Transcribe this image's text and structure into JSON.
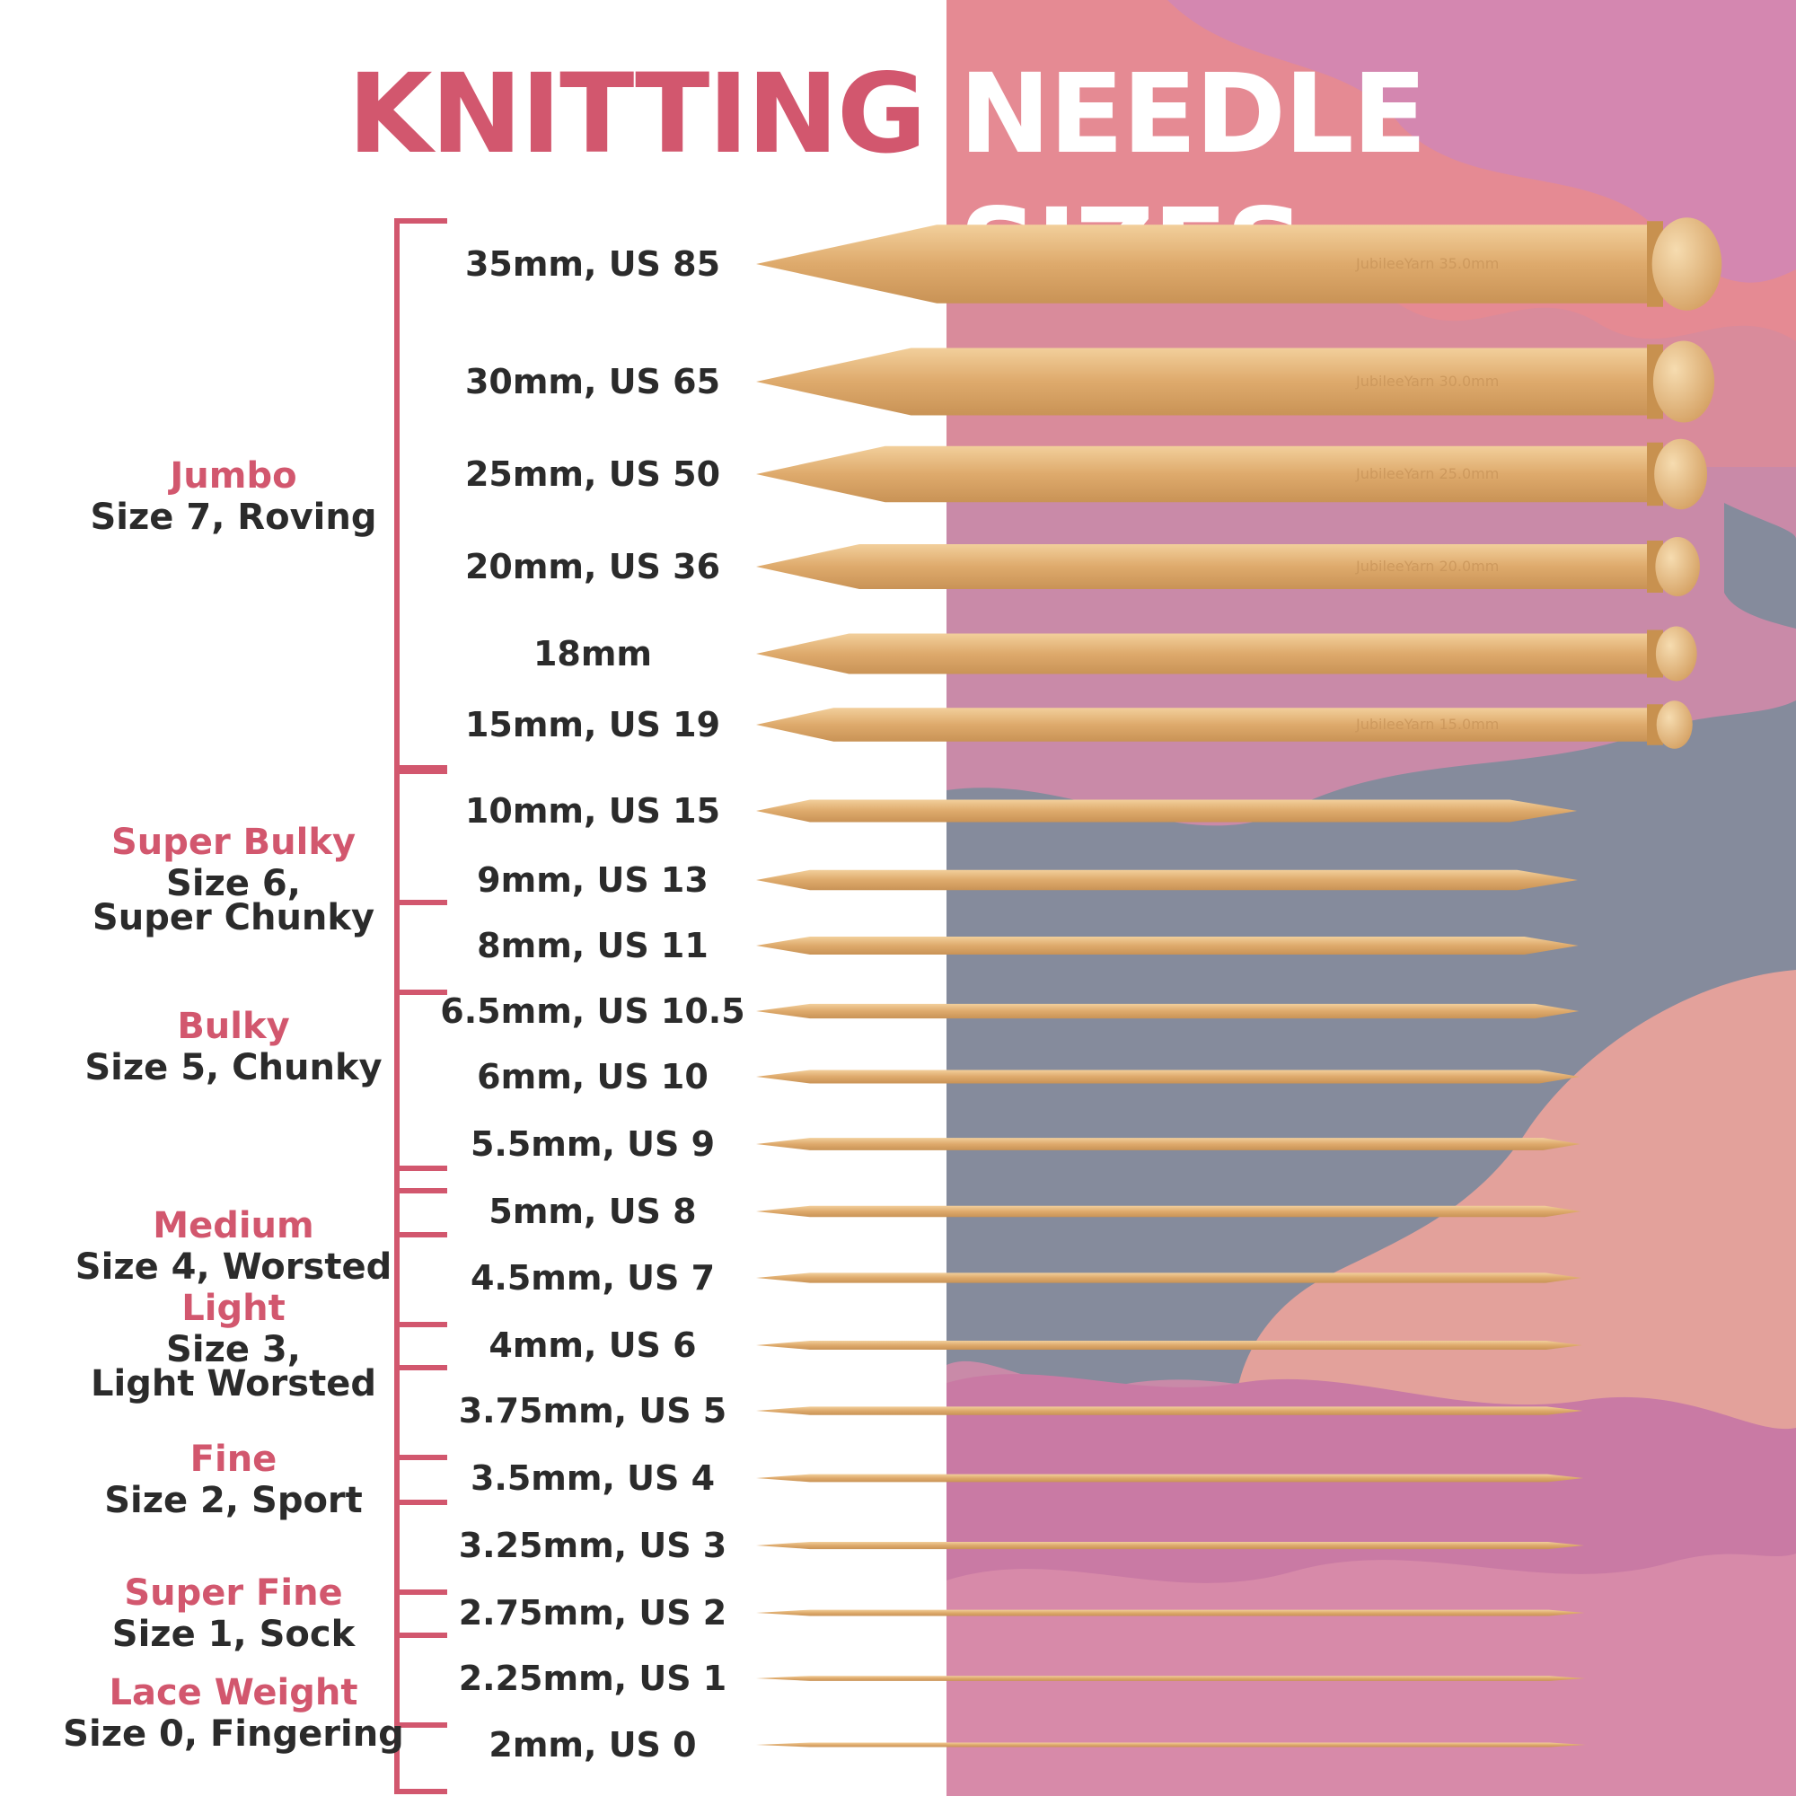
{
  "title": {
    "word1": "KNITTING",
    "word2": "NEEDLE SIZES"
  },
  "colors": {
    "accent": "#d2576e",
    "text": "#2b2b2b",
    "wood": "#dfb27a",
    "bracket": "#d2576e"
  },
  "needles": [
    {
      "label": "35mm, US 85",
      "mm": 35,
      "knob": true,
      "brand": "JubileeYarn 35.0mm"
    },
    {
      "label": "30mm, US 65",
      "mm": 30,
      "knob": true,
      "brand": "JubileeYarn 30.0mm"
    },
    {
      "label": "25mm, US 50",
      "mm": 25,
      "knob": true,
      "brand": "JubileeYarn 25.0mm"
    },
    {
      "label": "20mm, US 36",
      "mm": 20,
      "knob": true,
      "brand": "JubileeYarn 20.0mm"
    },
    {
      "label": "18mm",
      "mm": 18,
      "knob": true,
      "brand": ""
    },
    {
      "label": "15mm, US 19",
      "mm": 15,
      "knob": true,
      "brand": "JubileeYarn 15.0mm"
    },
    {
      "label": "10mm, US 15",
      "mm": 10,
      "knob": false,
      "brand": ""
    },
    {
      "label": "9mm, US 13",
      "mm": 9,
      "knob": false,
      "brand": ""
    },
    {
      "label": "8mm, US 11",
      "mm": 8,
      "knob": false,
      "brand": ""
    },
    {
      "label": "6.5mm, US 10.5",
      "mm": 6.5,
      "knob": false,
      "brand": ""
    },
    {
      "label": "6mm, US 10",
      "mm": 6,
      "knob": false,
      "brand": ""
    },
    {
      "label": "5.5mm, US 9",
      "mm": 5.5,
      "knob": false,
      "brand": ""
    },
    {
      "label": "5mm, US 8",
      "mm": 5,
      "knob": false,
      "brand": ""
    },
    {
      "label": "4.5mm, US 7",
      "mm": 4.5,
      "knob": false,
      "brand": ""
    },
    {
      "label": "4mm, US 6",
      "mm": 4,
      "knob": false,
      "brand": ""
    },
    {
      "label": "3.75mm, US 5",
      "mm": 3.75,
      "knob": false,
      "brand": ""
    },
    {
      "label": "3.5mm, US 4",
      "mm": 3.5,
      "knob": false,
      "brand": ""
    },
    {
      "label": "3.25mm, US 3",
      "mm": 3.25,
      "knob": false,
      "brand": ""
    },
    {
      "label": "2.75mm, US 2",
      "mm": 2.75,
      "knob": false,
      "brand": ""
    },
    {
      "label": "2.25mm, US 1",
      "mm": 2.25,
      "knob": false,
      "brand": ""
    },
    {
      "label": "2mm, US 0",
      "mm": 2,
      "knob": false,
      "brand": ""
    }
  ],
  "categories": [
    {
      "name": "Jumbo",
      "desc": "Size 7, Roving",
      "from": 0,
      "to": 5
    },
    {
      "name": "Super Bulky",
      "desc": "Size 6,\nSuper Chunky",
      "from": 6,
      "to": 8
    },
    {
      "name": "Bulky",
      "desc": "Size 5, Chunky",
      "from": 8,
      "to": 11
    },
    {
      "name": "Medium",
      "desc": "Size 4, Worsted",
      "from": 12,
      "to": 13
    },
    {
      "name": "Light",
      "desc": "Size 3,\nLight Worsted",
      "from": 13,
      "to": 15
    },
    {
      "name": "Fine",
      "desc": "Size 2, Sport",
      "from": 15,
      "to": 17
    },
    {
      "name": "Super Fine",
      "desc": "Size 1, Sock",
      "from": 17,
      "to": 19
    },
    {
      "name": "Lace Weight",
      "desc": "Size 0, Fingering",
      "from": 19,
      "to": 20
    }
  ]
}
